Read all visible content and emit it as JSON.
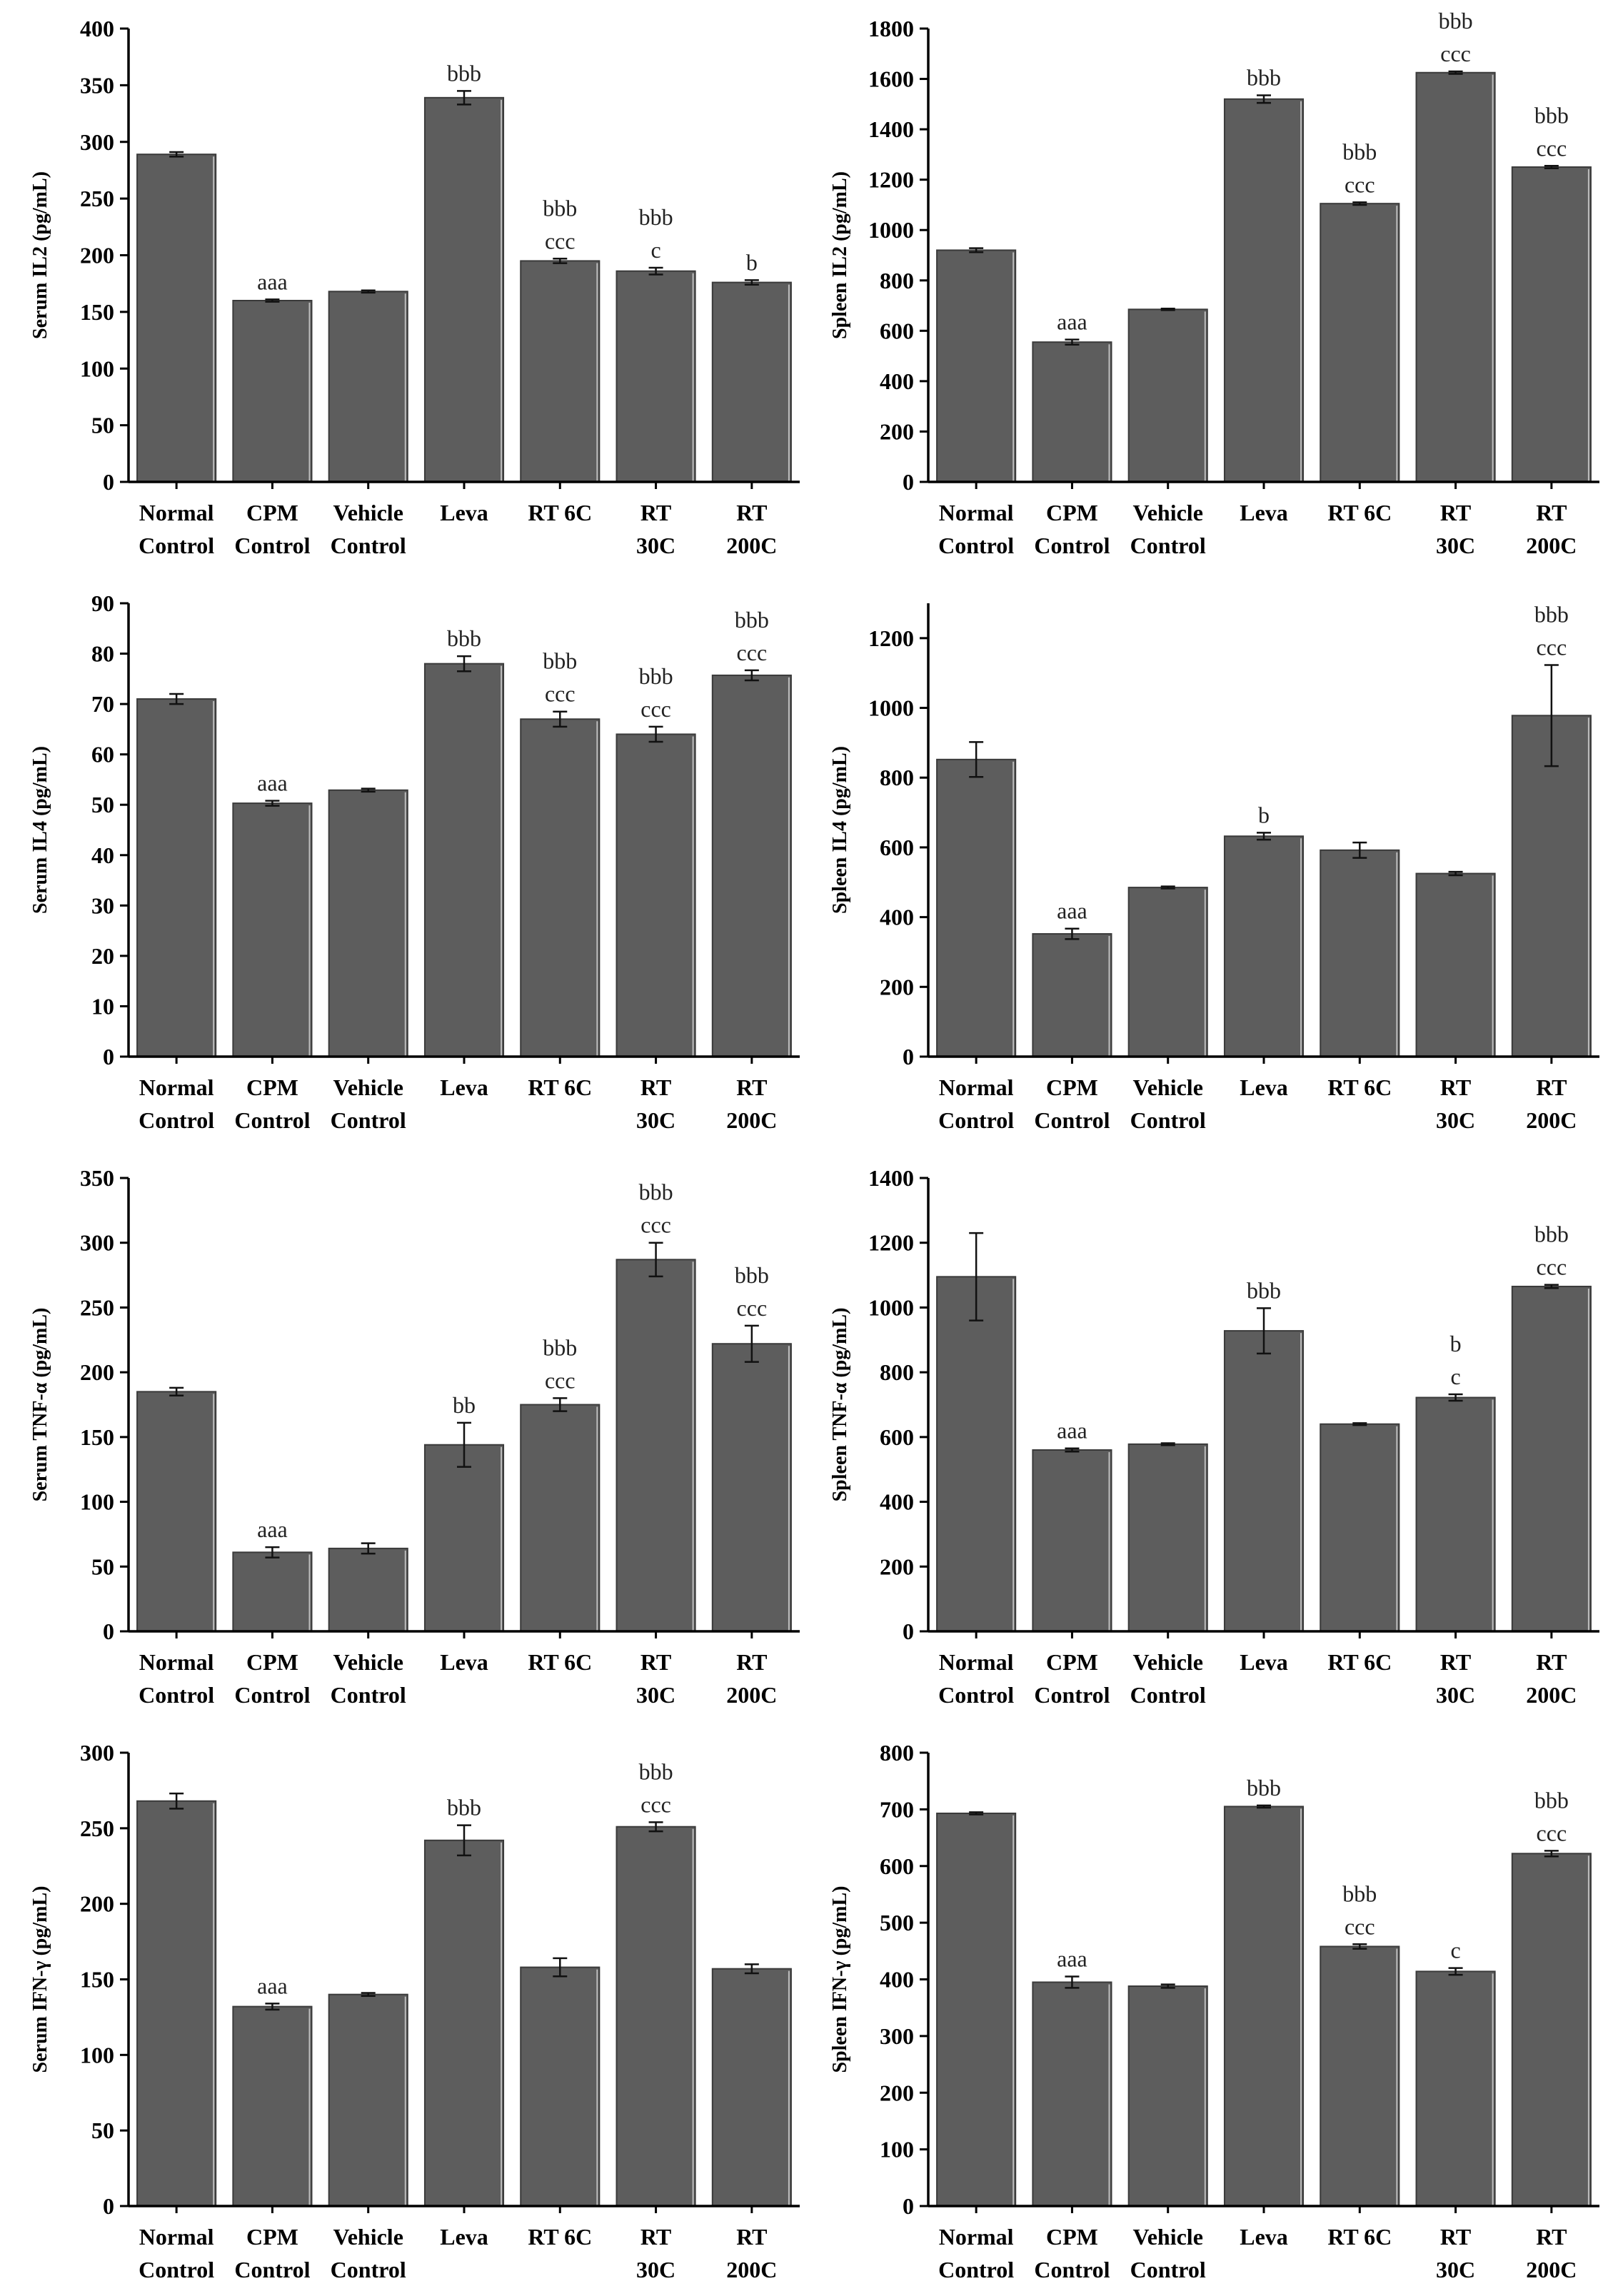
{
  "figure": {
    "colors": {
      "bar": "#5d5d5d",
      "bar_edge": "#3a3a3a",
      "axis": "#000000",
      "error_bar": "#111111"
    }
  },
  "chart_data": [
    {
      "type": "bar",
      "title": "",
      "xlabel": "",
      "ylabel": "Serum IL2 (pg/mL)",
      "categories": [
        "Normal Control",
        "CPM Control",
        "Vehicle Control",
        "Leva",
        "RT 6C",
        "RT 30C",
        "RT 200C"
      ],
      "tick_labels": [
        [
          "Normal",
          "Control"
        ],
        [
          "CPM",
          "Control"
        ],
        [
          "Vehicle",
          "Control"
        ],
        [
          "Leva"
        ],
        [
          "RT 6C"
        ],
        [
          "RT",
          "30C"
        ],
        [
          "RT",
          "200C"
        ]
      ],
      "values": [
        289,
        160,
        168,
        339,
        195,
        186,
        176
      ],
      "errors": [
        2,
        1,
        1,
        6,
        2,
        3,
        2
      ],
      "annotations": [
        [],
        [
          "aaa"
        ],
        [],
        [
          "bbb"
        ],
        [
          "bbb",
          "ccc"
        ],
        [
          "bbb",
          "c"
        ],
        [
          "b"
        ]
      ],
      "ylim": [
        0,
        400
      ],
      "yticks": [
        0,
        50,
        100,
        150,
        200,
        250,
        300,
        350,
        400
      ],
      "grid": false
    },
    {
      "type": "bar",
      "title": "",
      "xlabel": "",
      "ylabel": "Spleen IL2 (pg/mL)",
      "categories": [
        "Normal Control",
        "CPM Control",
        "Vehicle Control",
        "Leva",
        "RT 6C",
        "RT 30C",
        "RT 200C"
      ],
      "tick_labels": [
        [
          "Normal",
          "Control"
        ],
        [
          "CPM",
          "Control"
        ],
        [
          "Vehicle",
          "Control"
        ],
        [
          "Leva"
        ],
        [
          "RT 6C"
        ],
        [
          "RT",
          "30C"
        ],
        [
          "RT",
          "200C"
        ]
      ],
      "values": [
        920,
        555,
        685,
        1520,
        1105,
        1625,
        1250
      ],
      "errors": [
        8,
        10,
        3,
        15,
        5,
        5,
        5
      ],
      "annotations": [
        [],
        [
          "aaa"
        ],
        [],
        [
          "bbb"
        ],
        [
          "bbb",
          "ccc"
        ],
        [
          "bbb",
          "ccc"
        ],
        [
          "bbb",
          "ccc"
        ]
      ],
      "ylim": [
        0,
        1800
      ],
      "yticks": [
        0,
        200,
        400,
        600,
        800,
        1000,
        1200,
        1400,
        1600,
        1800
      ],
      "grid": false
    },
    {
      "type": "bar",
      "title": "",
      "xlabel": "",
      "ylabel": "Serum IL4 (pg/mL)",
      "categories": [
        "Normal Control",
        "CPM Control",
        "Vehicle Control",
        "Leva",
        "RT 6C",
        "RT 30C",
        "RT 200C"
      ],
      "tick_labels": [
        [
          "Normal",
          "Control"
        ],
        [
          "CPM",
          "Control"
        ],
        [
          "Vehicle",
          "Control"
        ],
        [
          "Leva"
        ],
        [
          "RT 6C"
        ],
        [
          "RT",
          "30C"
        ],
        [
          "RT",
          "200C"
        ]
      ],
      "values": [
        71,
        50.3,
        52.9,
        78,
        67,
        64,
        75.7
      ],
      "errors": [
        1,
        0.5,
        0.3,
        1.5,
        1.5,
        1.5,
        1
      ],
      "annotations": [
        [],
        [
          "aaa"
        ],
        [],
        [
          "bbb"
        ],
        [
          "bbb",
          "ccc"
        ],
        [
          "bbb",
          "ccc"
        ],
        [
          "bbb",
          "ccc"
        ]
      ],
      "ylim": [
        0,
        90
      ],
      "yticks": [
        0,
        10,
        20,
        30,
        40,
        50,
        60,
        70,
        80,
        90
      ],
      "grid": false
    },
    {
      "type": "bar",
      "title": "",
      "xlabel": "",
      "ylabel": "Spleen IL4 (pg/mL)",
      "categories": [
        "Normal Control",
        "CPM Control",
        "Vehicle Control",
        "Leva",
        "RT 6C",
        "RT 30C",
        "RT 200C"
      ],
      "tick_labels": [
        [
          "Normal",
          "Control"
        ],
        [
          "CPM",
          "Control"
        ],
        [
          "Vehicle",
          "Control"
        ],
        [
          "Leva"
        ],
        [
          "RT 6C"
        ],
        [
          "RT",
          "30C"
        ],
        [
          "RT",
          "200C"
        ]
      ],
      "values": [
        852,
        352,
        485,
        632,
        592,
        525,
        978
      ],
      "errors": [
        50,
        15,
        3,
        10,
        22,
        5,
        145
      ],
      "annotations": [
        [],
        [
          "aaa"
        ],
        [],
        [
          "b"
        ],
        [],
        [],
        [
          "bbb",
          "ccc"
        ]
      ],
      "ylim": [
        0,
        1300
      ],
      "yticks": [
        0,
        200,
        400,
        600,
        800,
        1000,
        1200
      ],
      "grid": false
    },
    {
      "type": "bar",
      "title": "",
      "xlabel": "",
      "ylabel": "Serum TNF-α (pg/mL)",
      "categories": [
        "Normal Control",
        "CPM Control",
        "Vehicle Control",
        "Leva",
        "RT 6C",
        "RT 30C",
        "RT 200C"
      ],
      "tick_labels": [
        [
          "Normal",
          "Control"
        ],
        [
          "CPM",
          "Control"
        ],
        [
          "Vehicle",
          "Control"
        ],
        [
          "Leva"
        ],
        [
          "RT 6C"
        ],
        [
          "RT",
          "30C"
        ],
        [
          "RT",
          "200C"
        ]
      ],
      "values": [
        185,
        61,
        64,
        144,
        175,
        287,
        222
      ],
      "errors": [
        3,
        4,
        4,
        17,
        5,
        13,
        14
      ],
      "annotations": [
        [],
        [
          "aaa"
        ],
        [],
        [
          "bb"
        ],
        [
          "bbb",
          "ccc"
        ],
        [
          "bbb",
          "ccc"
        ],
        [
          "bbb",
          "ccc"
        ]
      ],
      "ylim": [
        0,
        350
      ],
      "yticks": [
        0,
        50,
        100,
        150,
        200,
        250,
        300,
        350
      ],
      "grid": false
    },
    {
      "type": "bar",
      "title": "",
      "xlabel": "",
      "ylabel": "Spleen TNF-α (pg/mL)",
      "categories": [
        "Normal Control",
        "CPM Control",
        "Vehicle Control",
        "Leva",
        "RT 6C",
        "RT 30C",
        "RT 200C"
      ],
      "tick_labels": [
        [
          "Normal",
          "Control"
        ],
        [
          "CPM",
          "Control"
        ],
        [
          "Vehicle",
          "Control"
        ],
        [
          "Leva"
        ],
        [
          "RT 6C"
        ],
        [
          "RT",
          "30C"
        ],
        [
          "RT",
          "200C"
        ]
      ],
      "values": [
        1095,
        560,
        578,
        928,
        640,
        722,
        1065
      ],
      "errors": [
        135,
        5,
        3,
        70,
        3,
        10,
        5
      ],
      "annotations": [
        [],
        [
          "aaa"
        ],
        [],
        [
          "bbb"
        ],
        [],
        [
          "b",
          "c"
        ],
        [
          "bbb",
          "ccc"
        ]
      ],
      "ylim": [
        0,
        1400
      ],
      "yticks": [
        0,
        200,
        400,
        600,
        800,
        1000,
        1200,
        1400
      ],
      "grid": false
    },
    {
      "type": "bar",
      "title": "",
      "xlabel": "",
      "ylabel": "Serum IFN-γ (pg/mL)",
      "categories": [
        "Normal Control",
        "CPM Control",
        "Vehicle Control",
        "Leva",
        "RT 6C",
        "RT 30C",
        "RT 200C"
      ],
      "tick_labels": [
        [
          "Normal",
          "Control"
        ],
        [
          "CPM",
          "Control"
        ],
        [
          "Vehicle",
          "Control"
        ],
        [
          "Leva"
        ],
        [
          "RT 6C"
        ],
        [
          "RT",
          "30C"
        ],
        [
          "RT",
          "200C"
        ]
      ],
      "values": [
        268,
        132,
        140,
        242,
        158,
        251,
        157
      ],
      "errors": [
        5,
        2,
        1,
        10,
        6,
        3,
        3
      ],
      "annotations": [
        [],
        [
          "aaa"
        ],
        [],
        [
          "bbb"
        ],
        [],
        [
          "bbb",
          "ccc"
        ],
        []
      ],
      "ylim": [
        0,
        300
      ],
      "yticks": [
        0,
        50,
        100,
        150,
        200,
        250,
        300
      ],
      "grid": false
    },
    {
      "type": "bar",
      "title": "",
      "xlabel": "",
      "ylabel": "Spleen IFN-γ (pg/mL)",
      "categories": [
        "Normal Control",
        "CPM Control",
        "Vehicle Control",
        "Leva",
        "RT 6C",
        "RT 30C",
        "RT 200C"
      ],
      "tick_labels": [
        [
          "Normal",
          "Control"
        ],
        [
          "CPM",
          "Control"
        ],
        [
          "Vehicle",
          "Control"
        ],
        [
          "Leva"
        ],
        [
          "RT 6C"
        ],
        [
          "RT",
          "30C"
        ],
        [
          "RT",
          "200C"
        ]
      ],
      "values": [
        693,
        395,
        388,
        705,
        458,
        414,
        622
      ],
      "errors": [
        2,
        10,
        3,
        2,
        4,
        6,
        5
      ],
      "annotations": [
        [],
        [
          "aaa"
        ],
        [],
        [
          "bbb"
        ],
        [
          "bbb",
          "ccc"
        ],
        [
          "c"
        ],
        [
          "bbb",
          "ccc"
        ]
      ],
      "ylim": [
        0,
        800
      ],
      "yticks": [
        0,
        100,
        200,
        300,
        400,
        500,
        600,
        700,
        800
      ],
      "grid": false
    }
  ]
}
